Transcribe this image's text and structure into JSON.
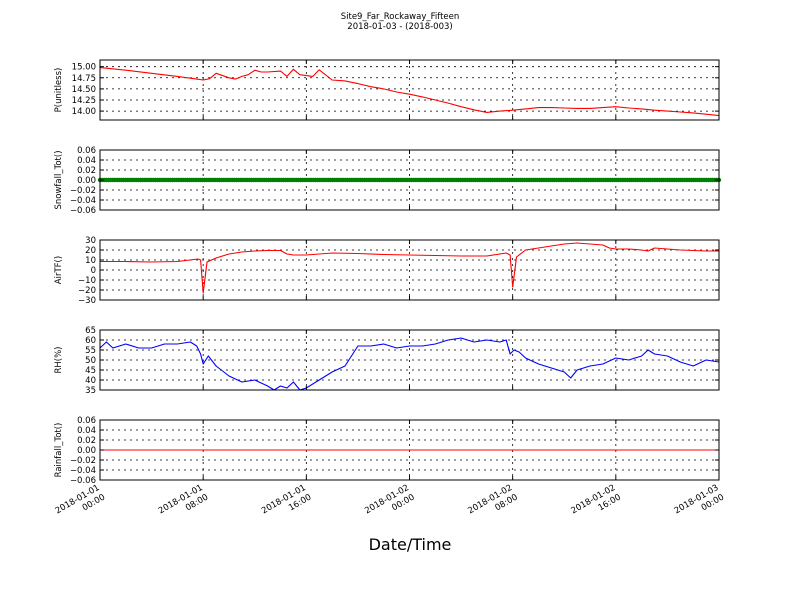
{
  "figure": {
    "title": "Site9_Far_Rockaway_Fifteen",
    "subtitle": "2018-01-03 - (2018-003)",
    "xlabel": "Date/Time"
  },
  "chart_data": [
    {
      "type": "line",
      "ylabel": "P(unitless)",
      "ylim": [
        13.8,
        15.15
      ],
      "yticks": [
        "15.00",
        "14.75",
        "14.50",
        "14.25",
        "14.00"
      ],
      "ytick_values": [
        15.0,
        14.75,
        14.5,
        14.25,
        14.0
      ],
      "grid": true,
      "series": [
        {
          "color": "#ff0000",
          "x": [
            0,
            2,
            4,
            6,
            7,
            7.5,
            8,
            8.5,
            9,
            10,
            10.5,
            11,
            11.5,
            12,
            12.5,
            13,
            14,
            14.5,
            15,
            15.5,
            16,
            16.5,
            17,
            18,
            19,
            20,
            21,
            22,
            23,
            24,
            25,
            26,
            27,
            28,
            29,
            30,
            31,
            32,
            33,
            34,
            35,
            36,
            37,
            38,
            39,
            40,
            41,
            42,
            43,
            44,
            45,
            46,
            47,
            48
          ],
          "y": [
            14.98,
            14.92,
            14.85,
            14.78,
            14.74,
            14.72,
            14.7,
            14.73,
            14.85,
            14.75,
            14.72,
            14.78,
            14.82,
            14.92,
            14.88,
            14.88,
            14.9,
            14.78,
            14.94,
            14.82,
            14.8,
            14.78,
            14.93,
            14.7,
            14.68,
            14.62,
            14.55,
            14.5,
            14.43,
            14.38,
            14.32,
            14.25,
            14.18,
            14.1,
            14.03,
            13.97,
            14.0,
            14.02,
            14.05,
            14.08,
            14.08,
            14.07,
            14.06,
            14.06,
            14.08,
            14.1,
            14.07,
            14.05,
            14.02,
            14.0,
            13.98,
            13.96,
            13.93,
            13.9
          ]
        }
      ]
    },
    {
      "type": "scatter",
      "ylabel": "Snowfall_Tot()",
      "ylim": [
        -0.06,
        0.06
      ],
      "yticks": [
        "0.06",
        "0.04",
        "0.02",
        "0.00",
        "−0.02",
        "−0.04",
        "−0.06"
      ],
      "ytick_values": [
        0.06,
        0.04,
        0.02,
        0.0,
        -0.02,
        -0.04,
        -0.06
      ],
      "grid": true,
      "series": [
        {
          "color": "#008000",
          "x_range": [
            0,
            48
          ],
          "constant_value": 0.0
        }
      ]
    },
    {
      "type": "line",
      "ylabel": "AirTF()",
      "ylim": [
        -30,
        30
      ],
      "yticks": [
        "30",
        "20",
        "10",
        "0",
        "−10",
        "−20",
        "−30"
      ],
      "ytick_values": [
        30,
        20,
        10,
        0,
        -10,
        -20,
        -30
      ],
      "grid": true,
      "series": [
        {
          "color": "#ff0000",
          "x": [
            0,
            2,
            4,
            6,
            7.6,
            7.8,
            8.0,
            8.3,
            9,
            10,
            11,
            12,
            13,
            14,
            14.5,
            15,
            16,
            17,
            18,
            20,
            22,
            24,
            26,
            28,
            30,
            31.5,
            31.8,
            32.0,
            32.3,
            33,
            34,
            35,
            36,
            37,
            38,
            39,
            39.5,
            40,
            41,
            42,
            42.5,
            43,
            44,
            45,
            46,
            47,
            48
          ],
          "y": [
            8.5,
            8.5,
            8.0,
            8.5,
            11,
            10,
            -23,
            8,
            12,
            16,
            18,
            19,
            19.5,
            19.5,
            16,
            15,
            15,
            16,
            17,
            16.5,
            15.5,
            15,
            14.5,
            14,
            14,
            17,
            15,
            -17,
            13,
            20,
            22,
            24,
            26,
            27,
            26,
            25,
            22,
            21,
            21,
            20,
            19,
            22,
            21,
            20,
            19.5,
            19,
            19
          ]
        }
      ]
    },
    {
      "type": "line",
      "ylabel": "RH(%)",
      "ylim": [
        35,
        65
      ],
      "yticks": [
        "65",
        "60",
        "55",
        "50",
        "45",
        "40",
        "35"
      ],
      "ytick_values": [
        65,
        60,
        55,
        50,
        45,
        40,
        35
      ],
      "grid": true,
      "series": [
        {
          "color": "#0000ff",
          "x": [
            0,
            0.5,
            1,
            2,
            3,
            4,
            5,
            6,
            7,
            7.5,
            7.8,
            8.0,
            8.4,
            9,
            10,
            11,
            12,
            13,
            13.5,
            14,
            14.5,
            15,
            15.5,
            16,
            17,
            18,
            19,
            20,
            21,
            22,
            23,
            24,
            25,
            26,
            27,
            28,
            29,
            30,
            31,
            31.5,
            31.8,
            32.1,
            32.5,
            33,
            34,
            35,
            36,
            36.5,
            37,
            38,
            39,
            40,
            41,
            42,
            42.5,
            43,
            44,
            45,
            46,
            47,
            48
          ],
          "y": [
            56,
            59,
            56,
            58,
            56,
            56,
            58,
            58,
            59,
            57,
            53,
            48,
            52,
            47,
            42,
            39,
            40,
            37,
            35,
            37,
            36,
            39,
            35,
            36,
            40,
            44,
            47,
            57,
            57,
            58,
            56,
            57,
            57,
            58,
            60,
            61,
            59,
            60,
            59,
            60,
            53,
            55,
            54,
            51,
            48,
            46,
            44,
            41,
            45,
            47,
            48,
            51,
            50,
            52,
            55,
            53,
            52,
            49,
            47,
            50,
            49
          ]
        }
      ]
    },
    {
      "type": "line",
      "ylabel": "Rainfall_Tot()",
      "ylim": [
        -0.06,
        0.06
      ],
      "yticks": [
        "0.06",
        "0.04",
        "0.02",
        "0.00",
        "−0.02",
        "−0.04",
        "−0.06"
      ],
      "ytick_values": [
        0.06,
        0.04,
        0.02,
        0.0,
        -0.02,
        -0.04,
        -0.06
      ],
      "grid": true,
      "series": [
        {
          "color": "#ff0000",
          "x": [
            0,
            48
          ],
          "y": [
            0.0,
            0.0
          ]
        }
      ]
    }
  ],
  "xaxis": {
    "xlim": [
      0,
      48
    ],
    "tick_values": [
      0,
      8,
      16,
      24,
      32,
      40,
      48
    ],
    "tick_labels": [
      [
        "2018-01-01",
        "00:00"
      ],
      [
        "2018-01-01",
        "08:00"
      ],
      [
        "2018-01-01",
        "16:00"
      ],
      [
        "2018-01-02",
        "00:00"
      ],
      [
        "2018-01-02",
        "08:00"
      ],
      [
        "2018-01-02",
        "16:00"
      ],
      [
        "2018-01-03",
        "00:00"
      ]
    ]
  }
}
